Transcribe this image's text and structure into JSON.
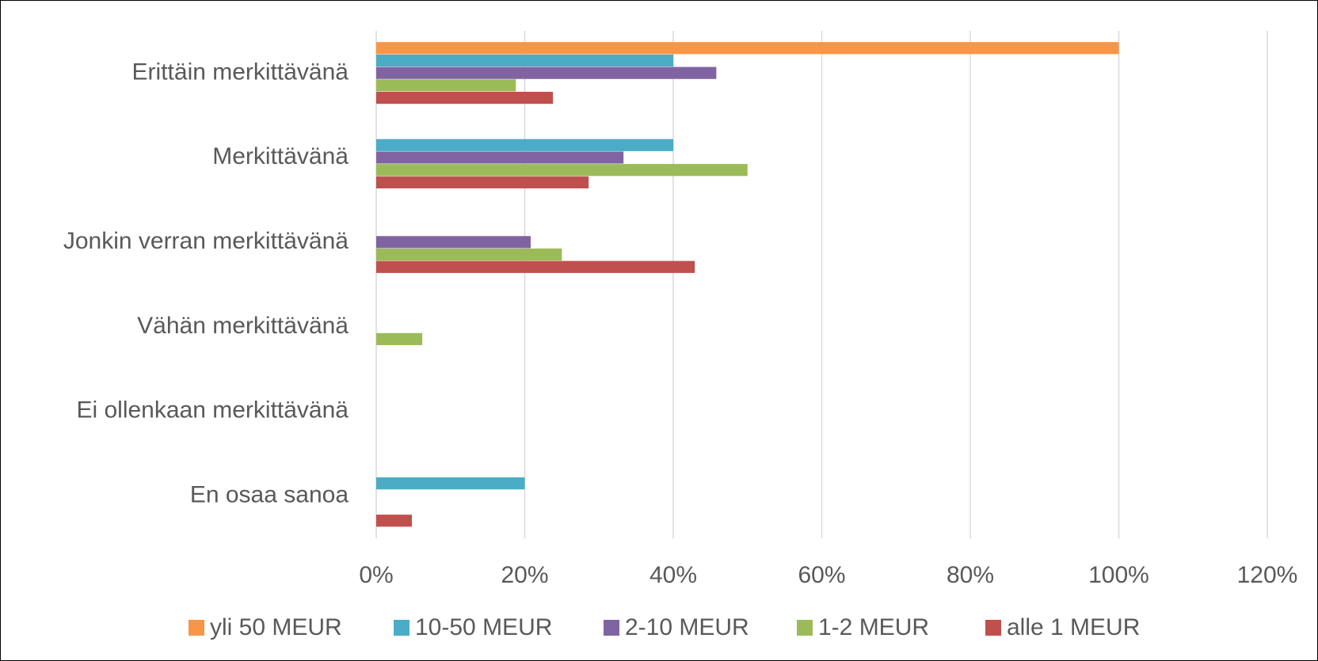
{
  "chart_data": {
    "type": "hbar",
    "categories": [
      "Erittäin merkittävänä",
      "Merkittävänä",
      "Jonkin verran merkittävänä",
      "Vähän merkittävänä",
      "Ei ollenkaan merkittävänä",
      "En osaa sanoa"
    ],
    "series": [
      {
        "name": "yli 50 MEUR",
        "color": "#f79646",
        "values": [
          100,
          0,
          0,
          0,
          0,
          0
        ]
      },
      {
        "name": "10-50 MEUR",
        "color": "#4bacc6",
        "values": [
          40,
          40,
          0,
          0,
          0,
          20
        ]
      },
      {
        "name": "2-10 MEUR",
        "color": "#8064a2",
        "values": [
          45.8,
          33.3,
          20.8,
          0,
          0,
          0
        ]
      },
      {
        "name": "1-2 MEUR",
        "color": "#9bbb59",
        "values": [
          18.8,
          50,
          25,
          6.2,
          0,
          0
        ]
      },
      {
        "name": "alle 1 MEUR",
        "color": "#c0504d",
        "values": [
          23.8,
          28.6,
          42.9,
          0,
          0,
          4.8
        ]
      }
    ],
    "xlim": [
      0,
      120
    ],
    "xticks": [
      {
        "value": 0,
        "label": "0%"
      },
      {
        "value": 20,
        "label": "20%"
      },
      {
        "value": 40,
        "label": "40%"
      },
      {
        "value": 60,
        "label": "60%"
      },
      {
        "value": 80,
        "label": "80%"
      },
      {
        "value": 100,
        "label": "100%"
      },
      {
        "value": 120,
        "label": "120%"
      }
    ],
    "grid": true,
    "legend": "bottom"
  }
}
